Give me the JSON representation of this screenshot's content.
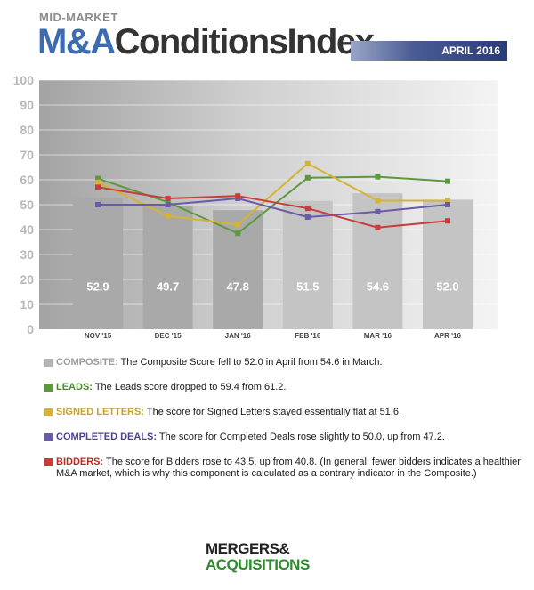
{
  "header": {
    "kicker": "MID-MARKET",
    "title_part1": "M&A",
    "title_part2": "ConditionsIndex",
    "date_badge": "APRIL 2016"
  },
  "chart_data": {
    "type": "bar+line",
    "categories": [
      "NOV '15",
      "DEC '15",
      "JAN '16",
      "FEB '16",
      "MAR '16",
      "APR '16"
    ],
    "ylim": [
      0,
      100
    ],
    "yticks": [
      0,
      10,
      20,
      30,
      40,
      50,
      60,
      70,
      80,
      90,
      100
    ],
    "grid": true,
    "bars": {
      "name": "COMPOSITE",
      "color": "#b4b4b4",
      "values": [
        52.9,
        49.7,
        47.8,
        51.5,
        54.6,
        52.0
      ],
      "labels": [
        "52.9",
        "49.7",
        "47.8",
        "51.5",
        "54.6",
        "52.0"
      ]
    },
    "series": [
      {
        "name": "LEADS",
        "color": "#5a9a3c",
        "values": [
          60.5,
          51.0,
          38.5,
          60.8,
          61.2,
          59.4
        ]
      },
      {
        "name": "SIGNED LETTERS",
        "color": "#d4b434",
        "values": [
          59.0,
          45.5,
          42.0,
          66.5,
          51.6,
          51.6
        ]
      },
      {
        "name": "COMPLETED DEALS",
        "color": "#6a5aa8",
        "values": [
          50.0,
          50.0,
          52.5,
          45.0,
          47.2,
          50.0
        ]
      },
      {
        "name": "BIDDERS",
        "color": "#c83c3c",
        "values": [
          57.0,
          52.5,
          53.5,
          48.5,
          40.8,
          43.5
        ]
      }
    ]
  },
  "legend": [
    {
      "name": "COMPOSITE:",
      "color": "#b4b4b4",
      "text": "The Composite Score fell to 52.0 in April from 54.6 in March."
    },
    {
      "name": "LEADS:",
      "color": "#5a9a3c",
      "text": "The Leads score dropped to 59.4 from 61.2."
    },
    {
      "name": "SIGNED LETTERS:",
      "color": "#d4b434",
      "text": "The score for Signed Letters stayed essentially flat at 51.6."
    },
    {
      "name": "COMPLETED DEALS:",
      "color": "#6a5aa8",
      "text": "The score for Completed Deals rose slightly to 50.0, up from 47.2."
    },
    {
      "name": "BIDDERS:",
      "color": "#c83c3c",
      "text": "The score for Bidders rose to 43.5, up from 40.8. (In general, fewer bidders indicates a healthier M&A market, which is why this component is calculated as a contrary indicator in the Composite.)"
    }
  ],
  "footer": {
    "logo_line1": "MERGERS&",
    "logo_line2": "ACQUISITIONS"
  }
}
